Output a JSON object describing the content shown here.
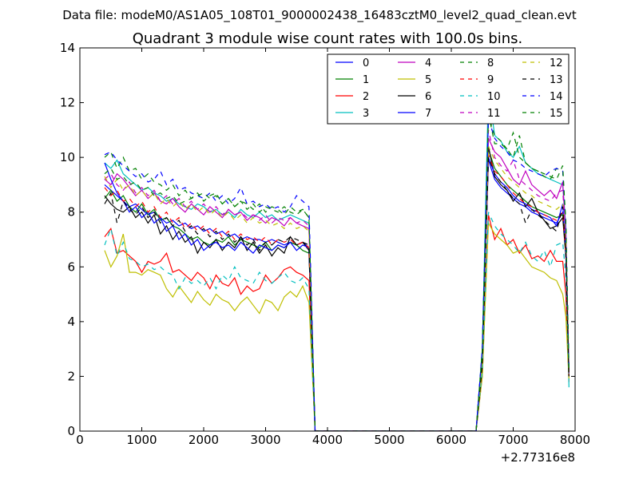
{
  "chart_data": {
    "type": "line",
    "suptitle": "Data file: modeM0/AS1A05_108T01_9000002438_16483cztM0_level2_quad_clean.evt",
    "title": "Quadrant 3 module wise count rates with 100.0s bins.",
    "xlabel": "",
    "ylabel": "",
    "x_offset_label": "+2.77316e8",
    "xlim": [
      0,
      8000
    ],
    "ylim": [
      0,
      14
    ],
    "xticks": [
      0,
      1000,
      2000,
      3000,
      4000,
      5000,
      6000,
      7000,
      8000
    ],
    "xtick_labels": [
      "0",
      "1000",
      "2000",
      "3000",
      "4000",
      "5000",
      "6000",
      "7000",
      "8000"
    ],
    "yticks": [
      0,
      2,
      4,
      6,
      8,
      10,
      12,
      14
    ],
    "ytick_labels": [
      "0",
      "2",
      "4",
      "6",
      "8",
      "10",
      "12",
      "14"
    ],
    "grid": false,
    "legend_position": "top-right",
    "legend_columns": 4,
    "x": [
      400,
      500,
      600,
      700,
      800,
      900,
      1000,
      1100,
      1200,
      1300,
      1400,
      1500,
      1600,
      1700,
      1800,
      1900,
      2000,
      2100,
      2200,
      2300,
      2400,
      2500,
      2600,
      2700,
      2800,
      2900,
      3000,
      3100,
      3200,
      3300,
      3400,
      3500,
      3600,
      3700,
      3800,
      3900,
      4000,
      4500,
      5000,
      5500,
      6000,
      6400,
      6500,
      6600,
      6700,
      6800,
      6900,
      7000,
      7100,
      7200,
      7300,
      7400,
      7500,
      7600,
      7700,
      7800,
      7850,
      7900
    ],
    "series": [
      {
        "name": "0",
        "color": "#0000ff",
        "style": "solid",
        "values": [
          9.0,
          8.8,
          8.6,
          8.4,
          8.2,
          8.3,
          8.1,
          7.9,
          8.0,
          7.8,
          7.6,
          7.7,
          7.5,
          7.6,
          7.4,
          7.5,
          7.3,
          7.4,
          7.2,
          7.3,
          7.1,
          7.2,
          7.0,
          7.1,
          7.0,
          7.0,
          6.9,
          7.0,
          6.9,
          6.8,
          6.9,
          6.8,
          6.9,
          6.7,
          0.0,
          0.0,
          0.0,
          0.0,
          0.0,
          0.0,
          0.0,
          0.0,
          2.5,
          9.9,
          9.2,
          8.9,
          8.7,
          8.5,
          8.3,
          8.2,
          8.0,
          7.9,
          7.8,
          7.7,
          7.6,
          8.0,
          6.5,
          2.0
        ]
      },
      {
        "name": "1",
        "color": "#008000",
        "style": "solid",
        "values": [
          8.5,
          8.8,
          8.4,
          8.6,
          8.2,
          8.0,
          8.3,
          7.9,
          8.1,
          7.7,
          7.8,
          7.5,
          7.4,
          7.2,
          7.0,
          7.1,
          6.9,
          6.8,
          7.0,
          6.9,
          7.1,
          6.8,
          7.0,
          6.9,
          6.8,
          6.7,
          6.9,
          6.6,
          6.8,
          6.7,
          6.9,
          6.8,
          6.6,
          6.5,
          0.0,
          0.0,
          0.0,
          0.0,
          0.0,
          0.0,
          0.0,
          0.0,
          2.5,
          10.3,
          9.6,
          9.3,
          9.0,
          8.8,
          8.6,
          8.4,
          8.2,
          8.1,
          8.0,
          7.9,
          7.8,
          7.9,
          6.6,
          2.1
        ]
      },
      {
        "name": "2",
        "color": "#ff0000",
        "style": "solid",
        "values": [
          7.1,
          7.4,
          6.5,
          6.6,
          6.4,
          6.2,
          5.8,
          6.2,
          6.1,
          6.2,
          6.5,
          5.8,
          5.9,
          5.7,
          5.5,
          5.8,
          5.6,
          5.2,
          5.7,
          5.4,
          5.3,
          5.6,
          5.0,
          5.3,
          5.1,
          5.2,
          5.7,
          5.4,
          5.6,
          5.9,
          6.0,
          5.8,
          5.7,
          5.5,
          0.0,
          0.0,
          0.0,
          0.0,
          0.0,
          0.0,
          0.0,
          0.0,
          2.0,
          7.9,
          7.0,
          7.4,
          6.8,
          7.0,
          6.5,
          6.8,
          6.3,
          6.4,
          6.2,
          6.6,
          6.2,
          6.2,
          5.0,
          1.8
        ]
      },
      {
        "name": "3",
        "color": "#00bfbf",
        "style": "solid",
        "values": [
          9.8,
          9.6,
          9.9,
          9.4,
          9.2,
          9.0,
          8.8,
          8.9,
          8.7,
          8.6,
          8.4,
          8.5,
          8.3,
          8.2,
          8.1,
          8.3,
          8.2,
          8.0,
          8.1,
          7.9,
          8.0,
          7.8,
          8.1,
          7.9,
          7.8,
          8.0,
          7.8,
          7.9,
          7.7,
          7.8,
          7.9,
          7.8,
          7.7,
          7.6,
          0.0,
          0.0,
          0.0,
          0.0,
          0.0,
          0.0,
          0.0,
          0.0,
          3.0,
          12.5,
          10.8,
          10.6,
          10.2,
          10.0,
          10.4,
          9.8,
          9.6,
          9.4,
          9.3,
          9.2,
          9.1,
          9.0,
          7.5,
          1.6
        ]
      },
      {
        "name": "4",
        "color": "#bf00bf",
        "style": "solid",
        "values": [
          9.2,
          9.0,
          9.4,
          9.2,
          8.9,
          8.6,
          8.8,
          8.5,
          8.7,
          8.4,
          8.3,
          8.5,
          8.2,
          8.0,
          8.3,
          8.1,
          7.9,
          8.2,
          8.0,
          7.8,
          8.1,
          7.9,
          8.0,
          7.7,
          7.9,
          7.8,
          7.6,
          7.8,
          7.7,
          7.5,
          7.8,
          7.6,
          7.5,
          7.4,
          0.0,
          0.0,
          0.0,
          0.0,
          0.0,
          0.0,
          0.0,
          0.0,
          2.8,
          10.7,
          10.2,
          10.0,
          9.6,
          9.2,
          9.0,
          9.5,
          9.0,
          8.8,
          8.6,
          8.8,
          8.5,
          9.1,
          7.2,
          2.2
        ]
      },
      {
        "name": "5",
        "color": "#bfbf00",
        "style": "solid",
        "values": [
          6.6,
          6.0,
          6.4,
          7.2,
          5.8,
          5.8,
          5.7,
          5.9,
          5.8,
          5.7,
          5.2,
          4.9,
          5.3,
          5.0,
          4.7,
          5.1,
          4.8,
          4.6,
          5.0,
          4.8,
          4.7,
          4.4,
          4.7,
          4.9,
          4.6,
          4.3,
          4.8,
          4.7,
          4.4,
          4.9,
          5.1,
          4.9,
          5.3,
          4.7,
          0.0,
          0.0,
          0.0,
          0.0,
          0.0,
          0.0,
          0.0,
          0.0,
          2.0,
          7.6,
          7.2,
          7.0,
          6.8,
          6.5,
          6.6,
          6.3,
          6.0,
          5.9,
          5.8,
          5.6,
          5.5,
          5.0,
          4.2,
          1.9
        ]
      },
      {
        "name": "6",
        "color": "#000000",
        "style": "solid",
        "values": [
          8.6,
          8.3,
          8.1,
          8.0,
          8.2,
          7.8,
          8.0,
          7.6,
          7.9,
          7.2,
          7.5,
          7.0,
          7.3,
          6.9,
          7.1,
          6.5,
          6.9,
          6.7,
          7.0,
          6.6,
          6.9,
          6.7,
          7.1,
          6.6,
          6.9,
          6.5,
          6.8,
          6.4,
          6.7,
          6.5,
          7.1,
          6.8,
          6.9,
          6.6,
          0.0,
          0.0,
          0.0,
          0.0,
          0.0,
          0.0,
          0.0,
          0.0,
          2.5,
          10.4,
          9.3,
          9.0,
          8.8,
          8.4,
          8.7,
          8.2,
          8.5,
          8.0,
          7.7,
          7.4,
          7.5,
          7.8,
          6.4,
          2.0
        ]
      },
      {
        "name": "7",
        "color": "#0000ff",
        "style": "solid",
        "values": [
          9.8,
          9.2,
          8.7,
          8.4,
          8.0,
          8.2,
          7.8,
          8.0,
          7.6,
          7.8,
          7.3,
          7.5,
          7.0,
          7.2,
          6.8,
          7.0,
          6.6,
          6.8,
          6.9,
          6.7,
          6.8,
          6.6,
          6.9,
          6.7,
          6.5,
          6.8,
          6.7,
          6.6,
          6.8,
          6.7,
          6.9,
          6.6,
          6.8,
          6.7,
          0.0,
          0.0,
          0.0,
          0.0,
          0.0,
          0.0,
          0.0,
          0.0,
          2.6,
          10.0,
          9.4,
          9.1,
          8.9,
          8.6,
          8.4,
          8.3,
          8.1,
          8.0,
          7.9,
          7.8,
          7.5,
          8.3,
          6.6,
          2.1
        ]
      },
      {
        "name": "8",
        "color": "#008000",
        "style": "dashed",
        "values": [
          10.0,
          10.2,
          9.6,
          10.0,
          9.5,
          9.6,
          9.2,
          9.4,
          9.1,
          9.0,
          8.8,
          9.0,
          8.6,
          8.8,
          8.5,
          8.7,
          8.4,
          8.6,
          8.7,
          8.3,
          8.5,
          8.2,
          8.4,
          8.3,
          8.1,
          8.3,
          8.0,
          8.2,
          8.1,
          7.9,
          8.2,
          8.0,
          8.1,
          7.8,
          0.0,
          0.0,
          0.0,
          0.0,
          0.0,
          0.0,
          0.0,
          0.0,
          3.0,
          11.5,
          10.8,
          10.6,
          10.3,
          10.9,
          10.0,
          9.8,
          9.6,
          9.5,
          9.3,
          9.2,
          9.6,
          9.5,
          7.6,
          2.3
        ]
      },
      {
        "name": "9",
        "color": "#ff0000",
        "style": "dashed",
        "values": [
          8.9,
          8.6,
          8.8,
          8.4,
          8.5,
          8.2,
          8.4,
          8.0,
          8.2,
          7.8,
          8.0,
          7.6,
          7.8,
          7.4,
          7.6,
          7.3,
          7.5,
          7.2,
          7.4,
          7.1,
          7.3,
          7.0,
          7.2,
          7.0,
          7.1,
          6.9,
          7.1,
          6.8,
          7.0,
          6.9,
          7.0,
          6.8,
          6.9,
          6.7,
          0.0,
          0.0,
          0.0,
          0.0,
          0.0,
          0.0,
          0.0,
          0.0,
          2.5,
          10.1,
          9.5,
          9.3,
          9.0,
          8.7,
          8.5,
          8.3,
          8.2,
          8.0,
          7.9,
          7.8,
          7.7,
          8.0,
          6.5,
          2.0
        ]
      },
      {
        "name": "10",
        "color": "#00bfbf",
        "style": "dashed",
        "values": [
          6.8,
          7.4,
          6.4,
          6.9,
          6.3,
          6.2,
          6.0,
          6.1,
          5.9,
          6.0,
          5.8,
          5.7,
          5.2,
          5.6,
          5.4,
          5.5,
          5.3,
          5.6,
          5.2,
          5.7,
          5.5,
          6.0,
          5.6,
          5.5,
          5.4,
          5.8,
          5.5,
          5.4,
          5.6,
          5.8,
          5.5,
          5.4,
          5.6,
          5.2,
          0.0,
          0.0,
          0.0,
          0.0,
          0.0,
          0.0,
          0.0,
          0.0,
          2.2,
          8.0,
          7.5,
          7.2,
          7.0,
          6.8,
          6.5,
          6.9,
          6.4,
          6.2,
          6.6,
          6.0,
          6.8,
          6.9,
          5.6,
          1.9
        ]
      },
      {
        "name": "11",
        "color": "#bf00bf",
        "style": "dashed",
        "values": [
          9.2,
          9.4,
          9.0,
          8.8,
          9.1,
          8.7,
          8.9,
          8.6,
          8.8,
          8.4,
          8.6,
          8.3,
          8.5,
          8.2,
          8.4,
          8.1,
          8.3,
          8.0,
          8.2,
          7.9,
          8.1,
          7.9,
          8.0,
          7.8,
          7.9,
          7.7,
          7.9,
          7.6,
          7.8,
          7.7,
          7.8,
          7.6,
          7.7,
          7.5,
          0.0,
          0.0,
          0.0,
          0.0,
          0.0,
          0.0,
          0.0,
          0.0,
          2.8,
          11.0,
          10.0,
          9.7,
          9.5,
          9.9,
          9.2,
          9.0,
          8.8,
          8.6,
          8.5,
          8.4,
          8.7,
          8.8,
          7.0,
          2.1
        ]
      },
      {
        "name": "12",
        "color": "#bfbf00",
        "style": "dashed",
        "values": [
          9.3,
          8.9,
          9.2,
          8.8,
          9.0,
          8.6,
          8.8,
          8.5,
          8.7,
          8.3,
          8.5,
          8.2,
          8.4,
          8.1,
          8.3,
          8.0,
          8.2,
          7.9,
          8.1,
          7.8,
          8.0,
          7.7,
          7.9,
          7.6,
          7.8,
          7.6,
          7.7,
          7.5,
          7.6,
          7.4,
          7.6,
          7.4,
          7.5,
          7.3,
          0.0,
          0.0,
          0.0,
          0.0,
          0.0,
          0.0,
          0.0,
          0.0,
          2.6,
          10.4,
          9.9,
          9.6,
          9.3,
          9.1,
          8.9,
          8.7,
          8.6,
          8.4,
          8.3,
          8.2,
          8.1,
          8.3,
          6.8,
          2.0
        ]
      },
      {
        "name": "13",
        "color": "#000000",
        "style": "dashed",
        "values": [
          8.3,
          8.7,
          7.6,
          8.4,
          8.1,
          7.9,
          8.2,
          7.8,
          8.0,
          7.6,
          7.8,
          7.5,
          7.7,
          7.3,
          7.5,
          7.2,
          7.4,
          7.1,
          7.3,
          7.0,
          7.2,
          6.9,
          7.1,
          6.8,
          7.0,
          6.6,
          6.9,
          6.8,
          7.0,
          6.9,
          7.1,
          7.0,
          6.9,
          6.8,
          0.0,
          0.0,
          0.0,
          0.0,
          0.0,
          0.0,
          0.0,
          0.0,
          2.4,
          10.0,
          9.4,
          9.1,
          8.8,
          8.5,
          8.3,
          7.6,
          8.1,
          7.9,
          7.7,
          7.5,
          7.3,
          8.2,
          6.5,
          2.0
        ]
      },
      {
        "name": "14",
        "color": "#0000ff",
        "style": "dashed",
        "values": [
          10.1,
          10.2,
          9.9,
          9.7,
          9.5,
          9.3,
          9.4,
          9.1,
          9.2,
          9.5,
          9.0,
          9.2,
          8.8,
          8.9,
          8.7,
          8.6,
          8.5,
          8.7,
          8.4,
          8.6,
          8.3,
          8.5,
          8.9,
          8.3,
          8.4,
          8.2,
          8.3,
          8.1,
          8.2,
          8.0,
          8.2,
          8.6,
          8.4,
          8.2,
          0.0,
          0.0,
          0.0,
          0.0,
          0.0,
          0.0,
          0.0,
          0.0,
          3.0,
          11.4,
          10.7,
          10.4,
          10.2,
          9.9,
          9.8,
          9.6,
          9.5,
          9.4,
          9.3,
          9.5,
          9.6,
          9.5,
          7.5,
          2.3
        ]
      },
      {
        "name": "15",
        "color": "#008000",
        "style": "dashed",
        "values": [
          9.4,
          9.6,
          9.2,
          9.3,
          9.0,
          9.1,
          8.8,
          8.9,
          8.6,
          8.7,
          8.5,
          8.6,
          8.3,
          8.4,
          8.5,
          8.6,
          8.7,
          8.5,
          8.6,
          8.3,
          8.5,
          8.2,
          8.4,
          8.1,
          8.3,
          8.0,
          8.2,
          8.1,
          8.0,
          8.2,
          8.0,
          7.9,
          8.1,
          7.8,
          0.0,
          0.0,
          0.0,
          0.0,
          0.0,
          0.0,
          0.0,
          0.0,
          2.9,
          11.6,
          10.5,
          10.5,
          10.3,
          10.0,
          10.8,
          9.8,
          9.6,
          9.5,
          9.4,
          9.3,
          9.2,
          9.7,
          7.6,
          2.2
        ]
      }
    ]
  }
}
